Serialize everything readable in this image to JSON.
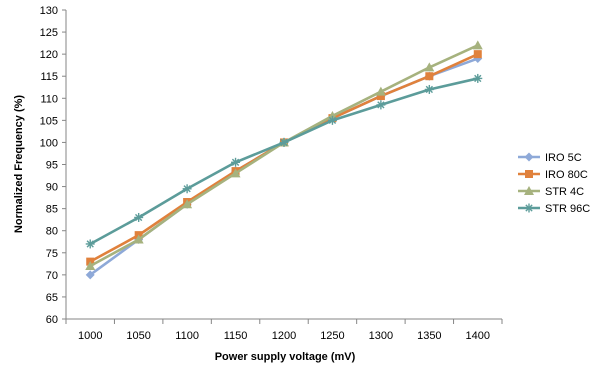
{
  "chart_data": {
    "type": "line",
    "xlabel": "Power supply voltage (mV)",
    "ylabel": "Normalized Frequency (%)",
    "x": [
      1000,
      1050,
      1100,
      1150,
      1200,
      1250,
      1300,
      1350,
      1400
    ],
    "ylim": [
      60,
      130
    ],
    "yticks": [
      60,
      65,
      70,
      75,
      80,
      85,
      90,
      95,
      100,
      105,
      110,
      115,
      120,
      125,
      130
    ],
    "grid": false,
    "legend_position": "right",
    "series": [
      {
        "name": "IRO 5C",
        "color": "#8EA9D8",
        "marker": "diamond",
        "values": [
          70.0,
          78.0,
          86.0,
          93.5,
          100.0,
          105.5,
          110.5,
          115.0,
          119.0
        ]
      },
      {
        "name": "IRO 80C",
        "color": "#E0813C",
        "marker": "square",
        "values": [
          73.0,
          79.0,
          86.5,
          93.5,
          100.0,
          105.5,
          110.5,
          115.0,
          120.0
        ]
      },
      {
        "name": "STR 4C",
        "color": "#A6B27E",
        "marker": "triangle",
        "values": [
          72.0,
          78.0,
          86.0,
          93.0,
          100.0,
          106.0,
          111.5,
          117.0,
          122.0
        ]
      },
      {
        "name": "STR 96C",
        "color": "#5C9C9A",
        "marker": "star",
        "values": [
          77.0,
          83.0,
          89.5,
          95.5,
          100.0,
          105.0,
          108.5,
          112.0,
          114.5
        ]
      }
    ]
  }
}
